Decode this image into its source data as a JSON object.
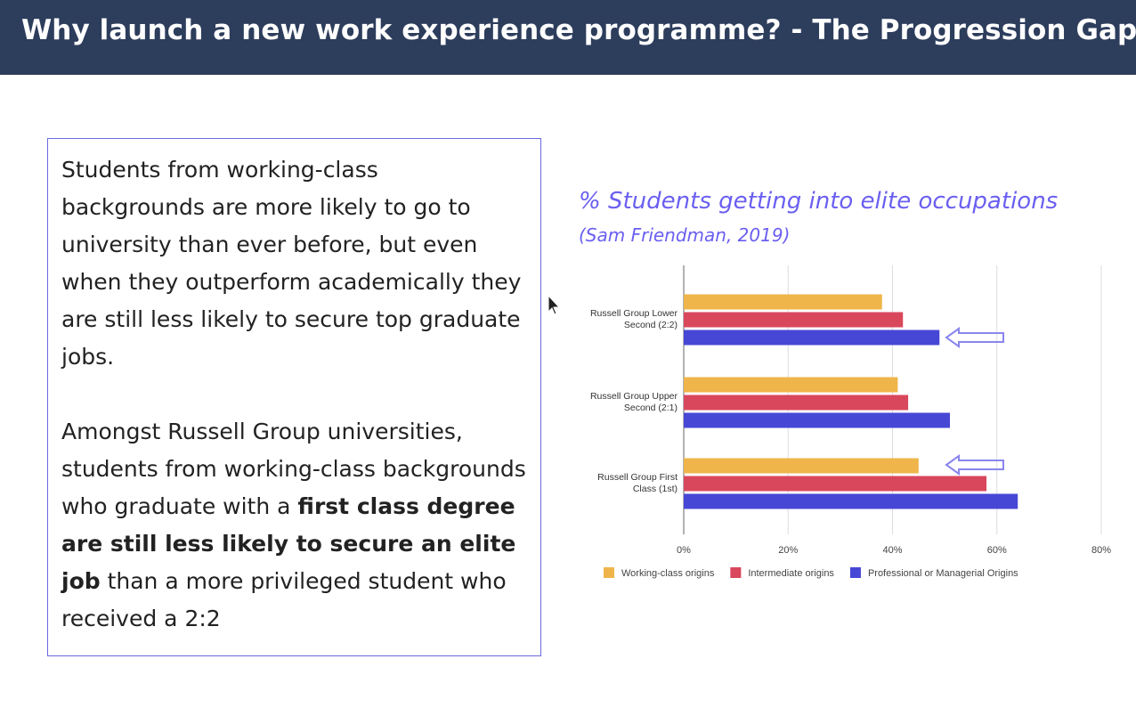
{
  "header": {
    "title": "Why launch a new work experience programme? - The Progression Gap"
  },
  "textbox": {
    "para1": "Students from working-class backgrounds are more likely to go to university than ever before, but even when they outperform academically they are still less likely to secure top graduate jobs.",
    "para2_start": "Amongst Russell Group universities, students from working-class backgrounds who graduate with a ",
    "para2_bold": "first class degree are still less likely to secure an elite job",
    "para2_end": " than a more privileged student who received a 2:2"
  },
  "chart_data": {
    "type": "bar",
    "orientation": "horizontal",
    "title": "% Students getting into elite occupations",
    "subtitle": "(Sam Friendman, 2019)",
    "categories": [
      "Russell Group Lower Second (2:2)",
      "Russell Group Upper Second (2:1)",
      "Russell Group First Class (1st)"
    ],
    "series": [
      {
        "name": "Working-class origins",
        "color": "#efb54a",
        "values": [
          38,
          41,
          45
        ]
      },
      {
        "name": "Intermediate origins",
        "color": "#d9475c",
        "values": [
          42,
          43,
          58
        ]
      },
      {
        "name": "Professional or Managerial Origins",
        "color": "#4747d6",
        "values": [
          49,
          51,
          64
        ]
      }
    ],
    "xlim": [
      0,
      80
    ],
    "xticks": [
      "0%",
      "20%",
      "40%",
      "60%",
      "80%"
    ],
    "grid": true,
    "legend": "bottom",
    "annotations": [
      "arrow pointing to Professional or Managerial Origins, Lower Second (2:2)",
      "arrow pointing to Working-class origins, First Class (1st)"
    ]
  }
}
